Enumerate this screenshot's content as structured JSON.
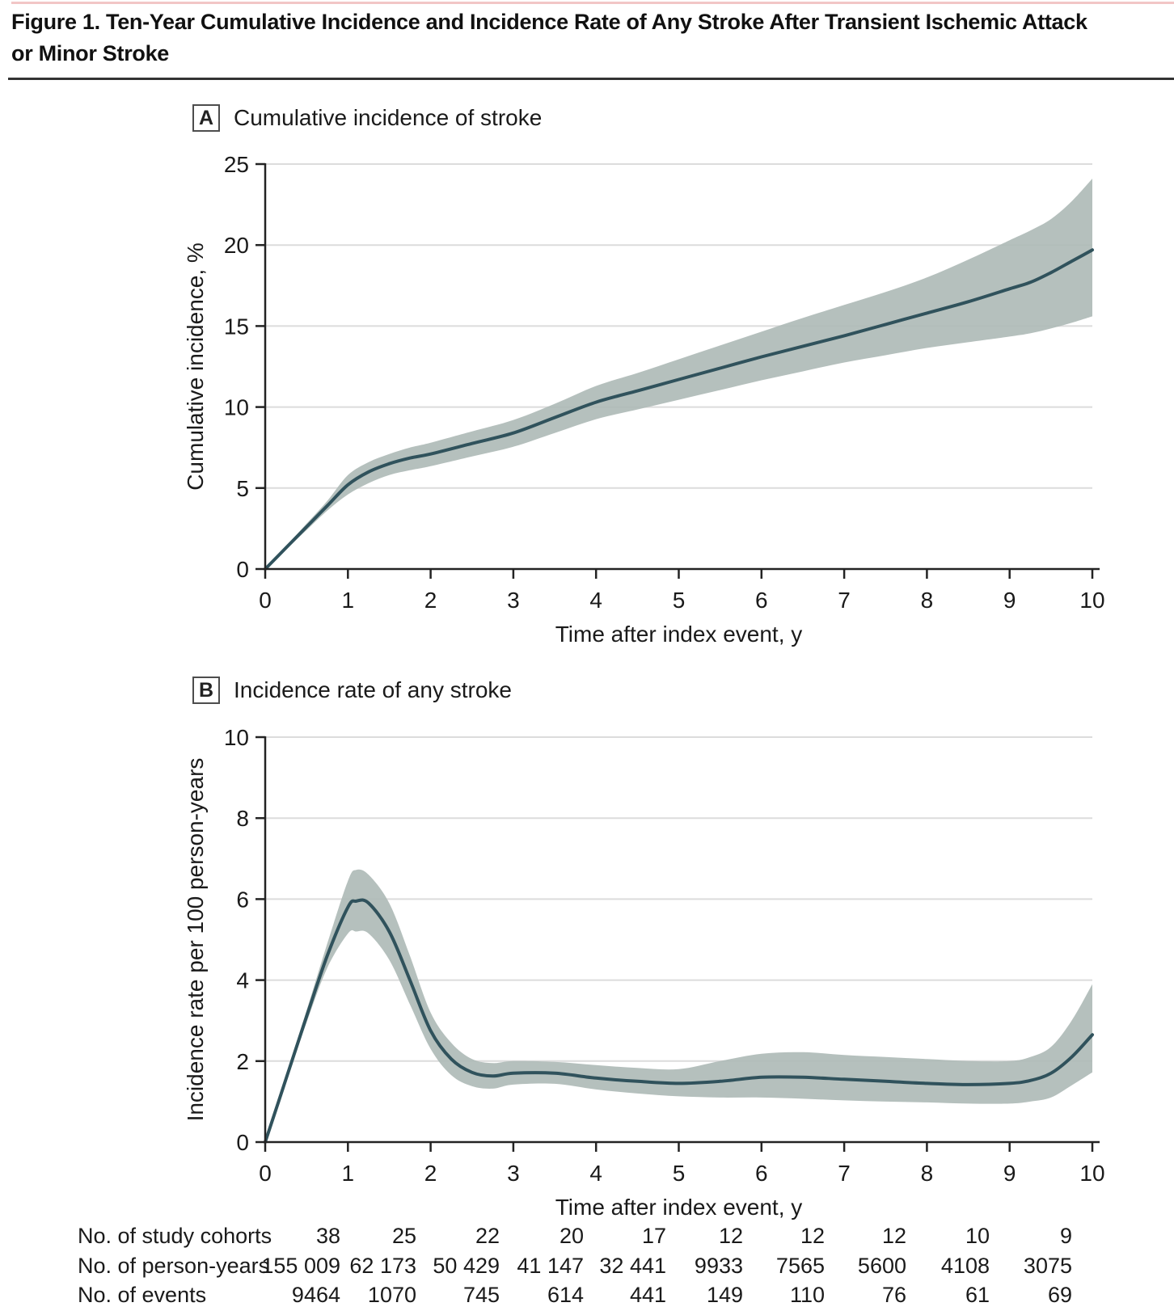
{
  "header": {
    "title_lines": [
      "Figure 1. Ten-Year Cumulative Incidence and Incidence Rate of Any Stroke After Transient Ischemic Attack",
      "or Minor Stroke"
    ]
  },
  "colors": {
    "accent_top_rule": "#f2c6c6",
    "title_divider": "#333333",
    "curve_line": "#30525c",
    "confidence_band": "#adb9b6",
    "gridline": "#dcdcdc",
    "axis": "#232323",
    "text": "#1a1a1a"
  },
  "panels": [
    {
      "label": "A",
      "title": "Cumulative incidence of stroke"
    },
    {
      "label": "B",
      "title": "Incidence rate of any stroke"
    }
  ],
  "chart_data": [
    {
      "type": "line",
      "panel": "A",
      "title": "Cumulative incidence of stroke",
      "xlabel": "Time after index event, y",
      "ylabel": "Cumulative incidence, %",
      "xlim": [
        0,
        10
      ],
      "ylim": [
        0,
        25
      ],
      "xticks": [
        0,
        1,
        2,
        3,
        4,
        5,
        6,
        7,
        8,
        9,
        10
      ],
      "yticks": [
        0,
        5,
        10,
        15,
        20,
        25
      ],
      "grid": true,
      "legend": "none",
      "x": [
        0,
        0.25,
        0.5,
        0.75,
        1,
        1.25,
        1.5,
        1.75,
        2,
        2.5,
        3,
        3.5,
        4,
        4.5,
        5,
        5.5,
        6,
        6.5,
        7,
        7.5,
        8,
        8.5,
        9,
        9.25,
        9.5,
        9.75,
        10
      ],
      "series": [
        {
          "name": "cumulative_incidence_pct",
          "values": [
            0,
            1.3,
            2.6,
            3.9,
            5.2,
            6.0,
            6.5,
            6.85,
            7.1,
            7.75,
            8.4,
            9.35,
            10.3,
            11.0,
            11.7,
            12.4,
            13.1,
            13.75,
            14.4,
            15.1,
            15.8,
            16.5,
            17.3,
            17.7,
            18.3,
            19.0,
            19.7
          ]
        },
        {
          "name": "lower_95_ci",
          "values": [
            0,
            1.2,
            2.4,
            3.6,
            4.6,
            5.3,
            5.8,
            6.1,
            6.35,
            6.95,
            7.55,
            8.4,
            9.25,
            9.85,
            10.45,
            11.05,
            11.65,
            12.2,
            12.75,
            13.2,
            13.65,
            14.0,
            14.35,
            14.55,
            14.85,
            15.2,
            15.6
          ]
        },
        {
          "name": "upper_95_ci",
          "values": [
            0,
            1.4,
            2.8,
            4.2,
            5.8,
            6.6,
            7.1,
            7.5,
            7.8,
            8.5,
            9.2,
            10.2,
            11.3,
            12.1,
            12.95,
            13.8,
            14.65,
            15.5,
            16.3,
            17.1,
            18.0,
            19.1,
            20.3,
            20.9,
            21.6,
            22.7,
            24.1
          ]
        }
      ]
    },
    {
      "type": "line",
      "panel": "B",
      "title": "Incidence rate of any stroke",
      "xlabel": "Time after index event, y",
      "ylabel": "Incidence rate per 100 person-years",
      "xlim": [
        0,
        10
      ],
      "ylim": [
        0,
        10
      ],
      "xticks": [
        0,
        1,
        2,
        3,
        4,
        5,
        6,
        7,
        8,
        9,
        10
      ],
      "yticks": [
        0,
        2,
        4,
        6,
        8,
        10
      ],
      "grid": true,
      "legend": "none",
      "x": [
        0,
        0.25,
        0.5,
        0.75,
        1,
        1.1,
        1.25,
        1.5,
        1.75,
        2,
        2.25,
        2.5,
        2.75,
        3,
        3.5,
        4,
        4.5,
        5,
        5.5,
        6,
        6.5,
        7,
        7.5,
        8,
        8.5,
        9,
        9.25,
        9.5,
        9.75,
        10
      ],
      "series": [
        {
          "name": "incidence_rate_per_100py",
          "values": [
            0,
            1.55,
            3.1,
            4.6,
            5.8,
            5.95,
            5.9,
            5.2,
            4.0,
            2.75,
            2.05,
            1.72,
            1.63,
            1.7,
            1.7,
            1.58,
            1.5,
            1.45,
            1.5,
            1.6,
            1.6,
            1.55,
            1.5,
            1.45,
            1.42,
            1.45,
            1.52,
            1.7,
            2.1,
            2.65
          ]
        },
        {
          "name": "lower_95_ci",
          "values": [
            0,
            1.45,
            2.95,
            4.3,
            5.15,
            5.2,
            5.15,
            4.5,
            3.4,
            2.3,
            1.65,
            1.38,
            1.32,
            1.42,
            1.44,
            1.3,
            1.2,
            1.13,
            1.1,
            1.1,
            1.07,
            1.03,
            1.0,
            0.98,
            0.95,
            0.95,
            1.0,
            1.1,
            1.4,
            1.72
          ]
        },
        {
          "name": "upper_95_ci",
          "values": [
            0,
            1.65,
            3.25,
            4.9,
            6.45,
            6.72,
            6.6,
            5.9,
            4.6,
            3.2,
            2.45,
            2.05,
            1.95,
            2.0,
            1.98,
            1.9,
            1.83,
            1.8,
            2.0,
            2.18,
            2.22,
            2.15,
            2.1,
            2.05,
            2.0,
            2.0,
            2.1,
            2.35,
            3.0,
            3.9
          ]
        }
      ]
    }
  ],
  "risk_table": {
    "rows": [
      {
        "label": "No. of study cohorts",
        "values": [
          "38",
          "25",
          "22",
          "20",
          "17",
          "12",
          "12",
          "12",
          "10",
          "9"
        ]
      },
      {
        "label": "No. of person-years",
        "values": [
          "155 009",
          "62 173",
          "50 429",
          "41 147",
          "32 441",
          "9933",
          "7565",
          "5600",
          "4108",
          "3075"
        ]
      },
      {
        "label": "No. of events",
        "values": [
          "9464",
          "1070",
          "745",
          "614",
          "441",
          "149",
          "110",
          "76",
          "61",
          "69"
        ]
      }
    ]
  }
}
